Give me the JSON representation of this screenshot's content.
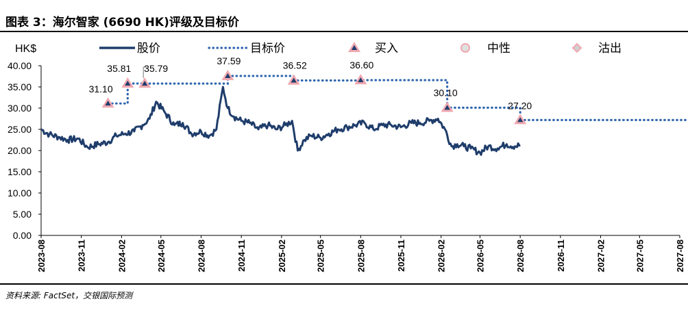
{
  "figure": {
    "title": "图表 3：海尔智家 (6690 HK)评级及目标价",
    "source": "资料来源: FactSet，交银国际预测"
  },
  "chart_data": {
    "type": "line",
    "ylabel": "HK$",
    "ylim": [
      0,
      40
    ],
    "yticks": [
      "0.00",
      "5.00",
      "10.00",
      "15.00",
      "20.00",
      "25.00",
      "30.00",
      "35.00",
      "40.00"
    ],
    "xticks": [
      "2023-08",
      "2023-11",
      "2024-02",
      "2024-05",
      "2024-08",
      "2024-11",
      "2025-02",
      "2025-05",
      "2025-08",
      "2025-11",
      "2026-02",
      "2026-05",
      "2026-08",
      "2026-11",
      "2027-02",
      "2027-05",
      "2027-08"
    ],
    "legend": [
      "股价",
      "目标价",
      "买入",
      "中性",
      "沽出"
    ],
    "legend_position": "top",
    "colors": {
      "price": "#1f3d6b",
      "target": "#2e66b0",
      "marker_fill": "#f0a8b0",
      "marker_stroke": "#c0392b",
      "axis": "#000000"
    },
    "price_series": {
      "name": "股价",
      "x": [
        "2023-08-01",
        "2023-08-20",
        "2023-09-10",
        "2023-10-01",
        "2023-10-25",
        "2023-11-15",
        "2023-12-10",
        "2024-01-01",
        "2024-01-20",
        "2024-02-10",
        "2024-03-01",
        "2024-03-20",
        "2024-04-05",
        "2024-04-20",
        "2024-05-10",
        "2024-06-01",
        "2024-06-20",
        "2024-07-10",
        "2024-08-01",
        "2024-08-20",
        "2024-09-05",
        "2024-09-20",
        "2024-10-01",
        "2024-10-15",
        "2024-11-01",
        "2024-11-20",
        "2024-12-10",
        "2025-01-01",
        "2025-01-20",
        "2025-02-10",
        "2025-02-25",
        "2025-03-10",
        "2025-03-25",
        "2025-04-10",
        "2025-05-01",
        "2025-05-20",
        "2025-06-10",
        "2025-07-01",
        "2025-07-20",
        "2025-08-10",
        "2025-08-30",
        "2025-09-20",
        "2025-10-10",
        "2025-11-01",
        "2025-11-25",
        "2025-12-15",
        "2026-01-05",
        "2026-01-25",
        "2026-02-10",
        "2026-02-25",
        "2026-03-10",
        "2026-03-25",
        "2026-04-10",
        "2026-05-01",
        "2026-05-20",
        "2026-06-10",
        "2026-07-01",
        "2026-07-20",
        "2026-08-01"
      ],
      "values": [
        25.0,
        23.8,
        23.2,
        22.5,
        22.8,
        20.8,
        21.5,
        22.0,
        23.5,
        24.0,
        24.5,
        26.0,
        27.5,
        31.5,
        29.0,
        26.0,
        26.5,
        24.0,
        24.5,
        23.5,
        25.0,
        35.0,
        30.0,
        28.0,
        27.0,
        26.5,
        25.0,
        26.0,
        25.0,
        26.0,
        27.0,
        20.0,
        22.5,
        23.5,
        23.0,
        24.0,
        25.0,
        25.5,
        26.0,
        26.5,
        25.0,
        26.0,
        26.0,
        25.5,
        26.5,
        26.5,
        27.0,
        27.5,
        25.0,
        21.0,
        21.5,
        21.0,
        20.5,
        19.5,
        21.0,
        20.5,
        21.5,
        21.0,
        21.3
      ]
    },
    "target_series": {
      "name": "目标价",
      "x": [
        "2024-01-01",
        "2024-02-15",
        "2024-03-25",
        "2024-10-01",
        "2025-03-01",
        "2025-08-01",
        "2026-02-15",
        "2026-08-01",
        "2027-08-31"
      ],
      "values": [
        31.1,
        35.81,
        35.79,
        37.59,
        36.52,
        36.6,
        30.1,
        27.2,
        27.2
      ]
    },
    "ratings": [
      {
        "x": "2024-01-01",
        "value": 31.1,
        "rating": "买入",
        "label": "31.10"
      },
      {
        "x": "2024-02-15",
        "value": 35.81,
        "rating": "买入",
        "label": "35.81"
      },
      {
        "x": "2024-03-25",
        "value": 35.79,
        "rating": "买入",
        "label": "35.79"
      },
      {
        "x": "2024-10-01",
        "value": 37.59,
        "rating": "买入",
        "label": "37.59"
      },
      {
        "x": "2025-03-01",
        "value": 36.52,
        "rating": "买入",
        "label": "36.52"
      },
      {
        "x": "2025-08-01",
        "value": 36.6,
        "rating": "买入",
        "label": "36.60"
      },
      {
        "x": "2026-02-15",
        "value": 30.1,
        "rating": "买入",
        "label": "30.10"
      },
      {
        "x": "2026-08-01",
        "value": 27.2,
        "rating": "买入",
        "label": "27.20"
      }
    ]
  }
}
